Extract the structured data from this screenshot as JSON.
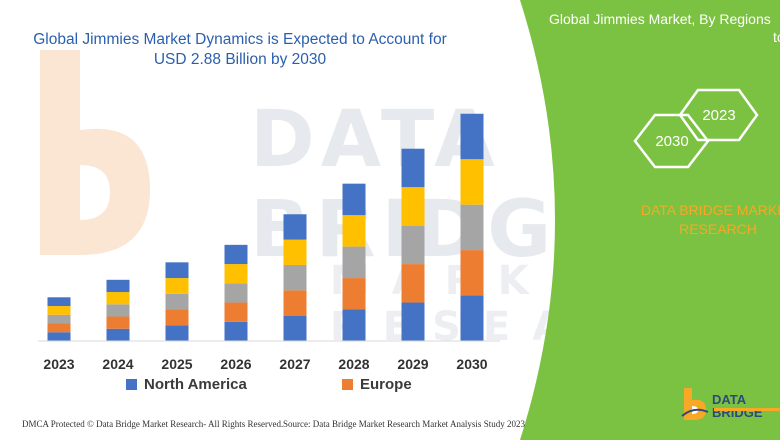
{
  "chart_data": {
    "type": "bar",
    "stacked": true,
    "title": "Global Jimmies Market Dynamics is Expected to Account for USD 2.88 Billion by 2030",
    "categories": [
      "2023",
      "2024",
      "2025",
      "2026",
      "2027",
      "2028",
      "2029",
      "2030"
    ],
    "series": [
      {
        "name": "North America",
        "color": "#4472c4",
        "values": [
          1.0,
          1.4,
          1.8,
          2.2,
          2.9,
          3.6,
          4.4,
          5.2
        ]
      },
      {
        "name": "Europe",
        "color": "#ed7d31",
        "values": [
          1.0,
          1.4,
          1.8,
          2.2,
          2.9,
          3.6,
          4.4,
          5.2
        ]
      },
      {
        "name": "",
        "color": "#a5a5a5",
        "values": [
          1.0,
          1.4,
          1.8,
          2.2,
          2.9,
          3.6,
          4.4,
          5.2
        ]
      },
      {
        "name": "",
        "color": "#ffc000",
        "values": [
          1.0,
          1.4,
          1.8,
          2.2,
          2.9,
          3.6,
          4.4,
          5.2
        ]
      },
      {
        "name": "",
        "color": "#4472c4",
        "values": [
          1.0,
          1.4,
          1.8,
          2.2,
          2.9,
          3.6,
          4.4,
          5.2
        ]
      }
    ],
    "xlabel": "",
    "ylabel": "",
    "ylim": [
      0,
      27
    ],
    "grid": false,
    "legend_position": "bottom"
  },
  "chart": {
    "title": "Global Jimmies Market Dynamics is Expected to Account for USD 2.88 Billion by 2030",
    "legend": [
      {
        "label": "North America",
        "color": "#4472c4"
      },
      {
        "label": "Europe",
        "color": "#ed7d31"
      }
    ]
  },
  "panel": {
    "title": "Global Jimmies Market, By Regions",
    "title_cont": "to",
    "color": "#7cc242",
    "hex_years": [
      "2023",
      "2030"
    ],
    "brand_line1": "DATA BRIDGE MARKET",
    "brand_line2": "RESEARCH",
    "brand_color": "#f7a826"
  },
  "footer": {
    "left": "DMCA Protected © Data Bridge Market Research- All Rights Reserved.",
    "right": "Source: Data Bridge Market Research Market Analysis Study 2023"
  },
  "logo": {
    "text": "DATA BRIDGE",
    "icon": "data-bridge-logo-icon"
  },
  "watermark": {
    "line1": "DATA BRIDGE",
    "line2": "MARKET RESEARCH"
  }
}
